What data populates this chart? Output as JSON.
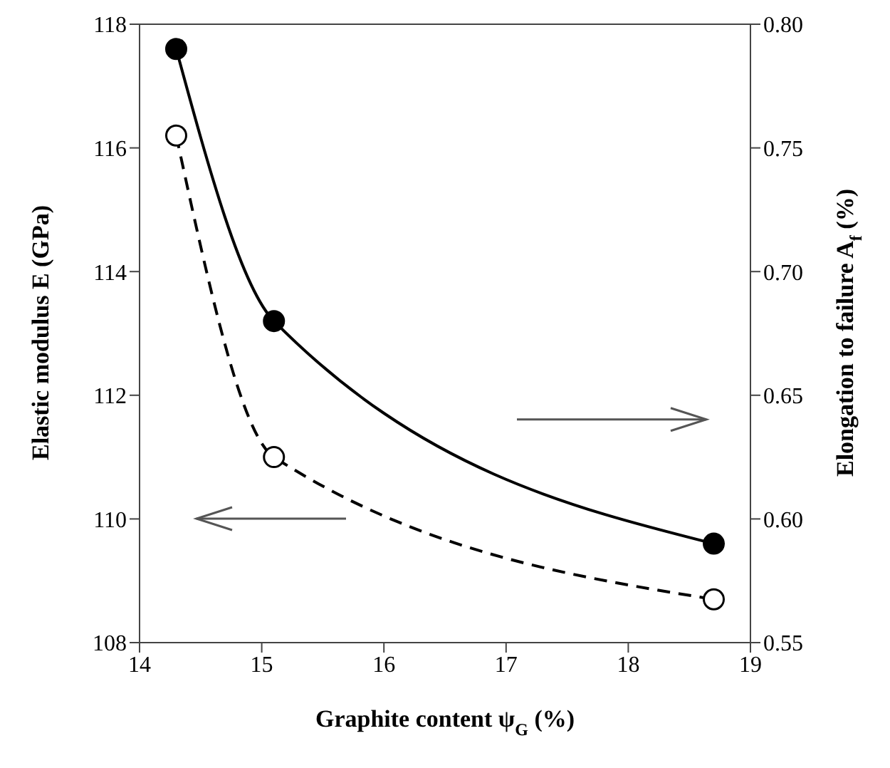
{
  "chart_data": {
    "type": "line",
    "xlabel": "Graphite content ψ$_{G}$ (%)",
    "ylabel": "Elastic modulus E (GPa)",
    "y2label": "Elongation to failure A$_{f}$ (%)",
    "x": [
      14.3,
      15.1,
      18.7
    ],
    "xlim": [
      14,
      19
    ],
    "xticks": [
      14,
      15,
      16,
      17,
      18,
      19
    ],
    "ylim": [
      108,
      118
    ],
    "yticks": [
      108,
      110,
      112,
      114,
      116,
      118
    ],
    "y2lim": [
      0.55,
      0.8
    ],
    "y2ticks": [
      {
        "value": 0.55,
        "label": "0.55"
      },
      {
        "value": 0.6,
        "label": "0.60"
      },
      {
        "value": 0.65,
        "label": "0.65"
      },
      {
        "value": 0.7,
        "label": "0.70"
      },
      {
        "value": 0.75,
        "label": "0.75"
      },
      {
        "value": 0.8,
        "label": "0.80"
      }
    ],
    "series": [
      {
        "color": "#000000",
        "values": [
          116.2,
          111.0,
          108.7
        ],
        "line_style": "dashed",
        "marker": "circle",
        "axis": "y"
      },
      {
        "color": "#000000",
        "values": [
          0.79,
          0.68,
          0.59
        ],
        "line_style": "solid",
        "marker": "circle",
        "axis": "y2"
      }
    ],
    "grid": false
  }
}
